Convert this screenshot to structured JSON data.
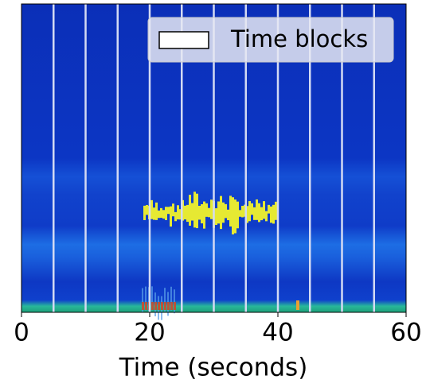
{
  "chart_data": {
    "type": "spectrogram",
    "xlabel": "Time (seconds)",
    "xlim": [
      0,
      60
    ],
    "xticks": [
      0,
      20,
      40,
      60
    ],
    "time_blocks": {
      "name": "Time blocks",
      "color": "#d3daf3",
      "x": [
        5,
        10,
        15,
        20,
        25,
        30,
        35,
        40,
        45,
        50,
        55
      ]
    },
    "legend": "upper right"
  }
}
